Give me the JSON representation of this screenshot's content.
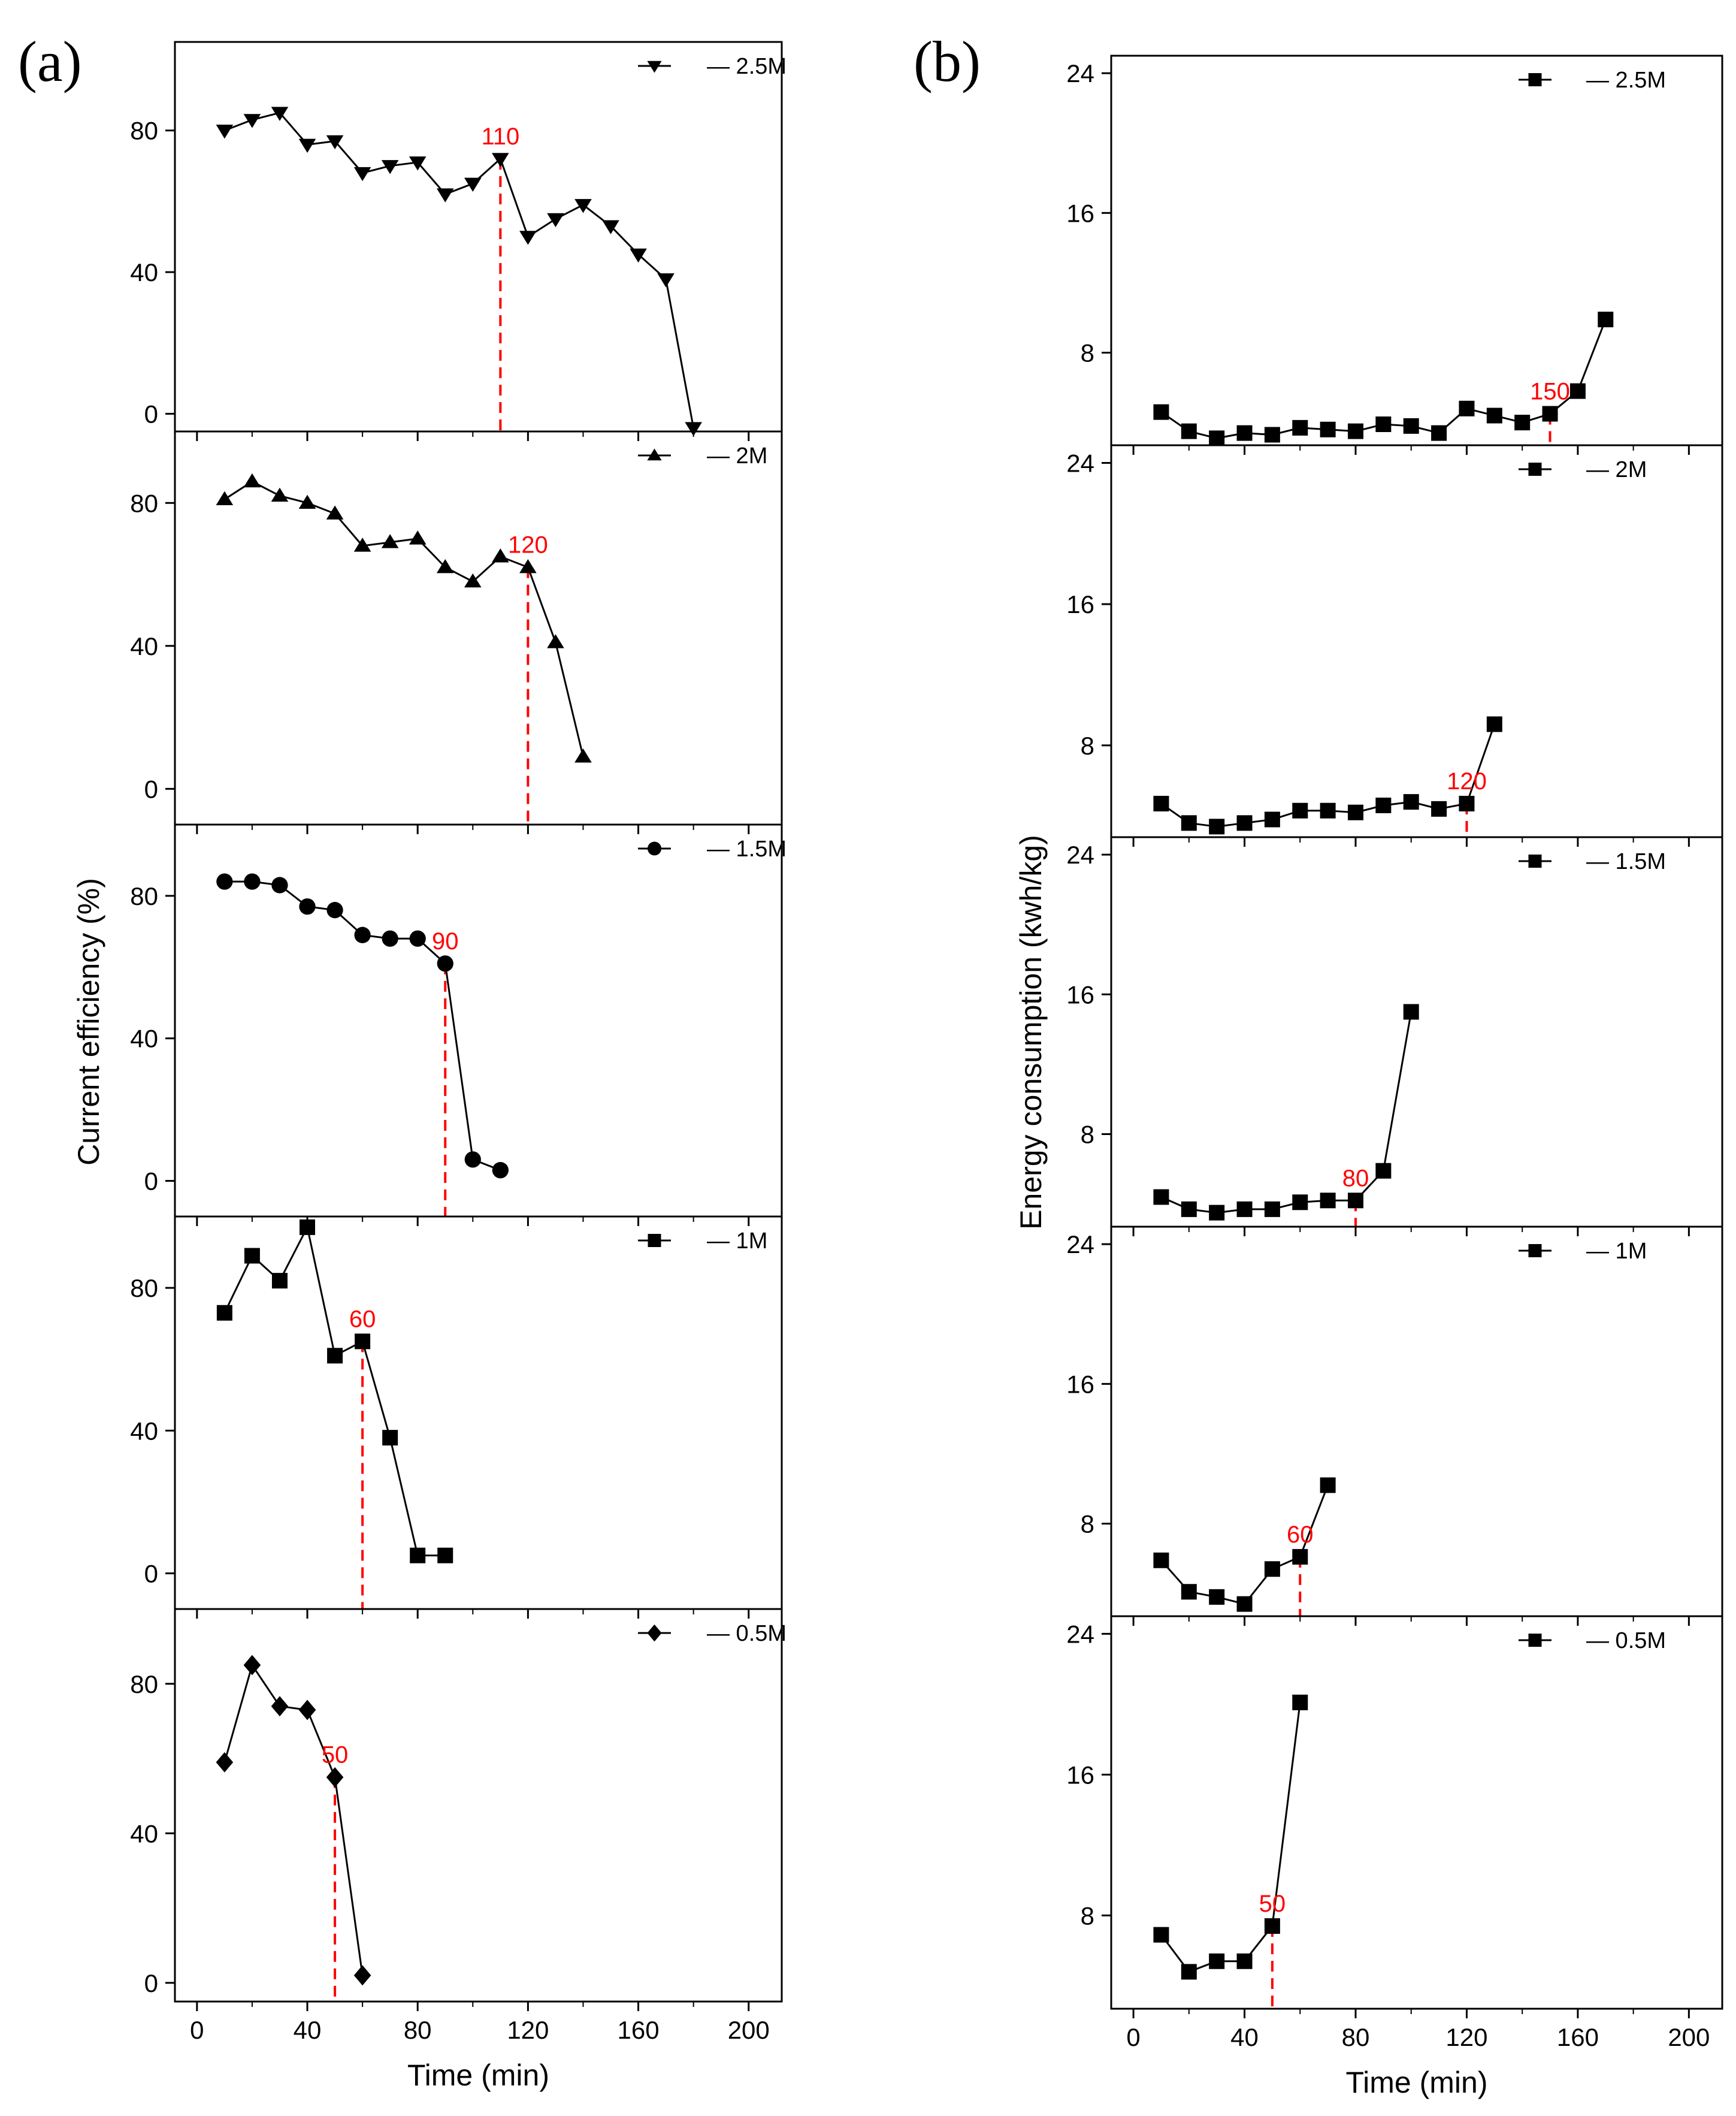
{
  "panel_labels": {
    "a": "(a)",
    "b": "(b)"
  },
  "chart_data": [
    {
      "type": "line",
      "panel": "(a)",
      "xlabel": "Time (min)",
      "ylabel": "Current efficiency (%)",
      "xlim": [
        -8,
        212
      ],
      "xticks": [
        0,
        40,
        80,
        120,
        160,
        200
      ],
      "xtick_labels": [
        "0",
        "40",
        "80",
        "120",
        "160",
        "200"
      ],
      "subplots": [
        {
          "name": "2.5M",
          "legend": "2.5M",
          "marker": "triangle-down",
          "ylim": [
            -5,
            105
          ],
          "yticks": [
            0,
            40,
            80
          ],
          "ytick_labels": [
            "0",
            "40",
            "80"
          ],
          "x": [
            10,
            20,
            30,
            40,
            50,
            60,
            70,
            80,
            90,
            100,
            110,
            120,
            130,
            140,
            150,
            160,
            170,
            180
          ],
          "y": [
            80,
            83,
            85,
            76,
            77,
            68,
            70,
            71,
            62,
            65,
            72,
            50,
            55,
            59,
            53,
            45,
            38,
            -4
          ],
          "marker_line": {
            "x": 110,
            "y": 72,
            "label": "110"
          }
        },
        {
          "name": "2M",
          "legend": "2M",
          "marker": "triangle-up",
          "ylim": [
            -10,
            100
          ],
          "yticks": [
            0,
            40,
            80
          ],
          "ytick_labels": [
            "0",
            "40",
            "80"
          ],
          "x": [
            10,
            20,
            30,
            40,
            50,
            60,
            70,
            80,
            90,
            100,
            110,
            120,
            130,
            140
          ],
          "y": [
            81,
            86,
            82,
            80,
            77,
            68,
            69,
            70,
            62,
            58,
            65,
            62,
            41,
            9
          ],
          "marker_line": {
            "x": 120,
            "y": 62,
            "label": "120"
          }
        },
        {
          "name": "1.5M",
          "legend": "1.5M",
          "marker": "circle",
          "ylim": [
            -10,
            100
          ],
          "yticks": [
            0,
            40,
            80
          ],
          "ytick_labels": [
            "0",
            "40",
            "80"
          ],
          "x": [
            10,
            20,
            30,
            40,
            50,
            60,
            70,
            80,
            90,
            100,
            110
          ],
          "y": [
            84,
            84,
            83,
            77,
            76,
            69,
            68,
            68,
            61,
            6,
            3
          ],
          "marker_line": {
            "x": 90,
            "y": 61,
            "label": "90"
          }
        },
        {
          "name": "1M",
          "legend": "1M",
          "marker": "square",
          "ylim": [
            -10,
            100
          ],
          "yticks": [
            0,
            40,
            80
          ],
          "ytick_labels": [
            "0",
            "40",
            "80"
          ],
          "x": [
            10,
            20,
            30,
            40,
            50,
            60,
            70,
            80,
            90
          ],
          "y": [
            73,
            89,
            82,
            97,
            61,
            65,
            38,
            5,
            5
          ],
          "marker_line": {
            "x": 60,
            "y": 65,
            "label": "60"
          }
        },
        {
          "name": "0.5M",
          "legend": "0.5M",
          "marker": "diamond",
          "ylim": [
            -5,
            100
          ],
          "yticks": [
            0,
            40,
            80
          ],
          "ytick_labels": [
            "0",
            "40",
            "80"
          ],
          "x": [
            10,
            20,
            30,
            40,
            50,
            60
          ],
          "y": [
            59,
            85,
            74,
            73,
            55,
            2
          ],
          "marker_line": {
            "x": 50,
            "y": 55,
            "label": "50"
          }
        }
      ]
    },
    {
      "type": "line",
      "panel": "(b)",
      "xlabel": "Time (min)",
      "ylabel": "Energy consumption (kwh/kg)",
      "xlim": [
        -8,
        212
      ],
      "xticks": [
        0,
        40,
        80,
        120,
        160,
        200
      ],
      "xtick_labels": [
        "0",
        "40",
        "80",
        "120",
        "160",
        "200"
      ],
      "subplots": [
        {
          "name": "2.5M",
          "legend": "2.5M",
          "marker": "square",
          "ylim": [
            2.7,
            25
          ],
          "yticks": [
            8,
            16,
            24
          ],
          "ytick_labels": [
            "8",
            "16",
            "24"
          ],
          "x": [
            10,
            20,
            30,
            40,
            50,
            60,
            70,
            80,
            90,
            100,
            110,
            120,
            130,
            140,
            150,
            160,
            170
          ],
          "y": [
            4.6,
            3.5,
            3.1,
            3.4,
            3.3,
            3.7,
            3.6,
            3.5,
            3.9,
            3.8,
            3.4,
            4.8,
            4.4,
            4.0,
            4.5,
            5.8,
            9.9
          ],
          "marker_line": {
            "x": 150,
            "y": 4.5,
            "label": "150"
          }
        },
        {
          "name": "2M",
          "legend": "2M",
          "marker": "square",
          "ylim": [
            2.8,
            25
          ],
          "yticks": [
            8,
            16,
            24
          ],
          "ytick_labels": [
            "8",
            "16",
            "24"
          ],
          "x": [
            10,
            20,
            30,
            40,
            50,
            60,
            70,
            80,
            90,
            100,
            110,
            120,
            130
          ],
          "y": [
            4.7,
            3.6,
            3.4,
            3.6,
            3.8,
            4.3,
            4.3,
            4.2,
            4.6,
            4.8,
            4.4,
            4.7,
            9.2
          ],
          "marker_line": {
            "x": 120,
            "y": 4.7,
            "label": "120"
          }
        },
        {
          "name": "1.5M",
          "legend": "1.5M",
          "marker": "square",
          "ylim": [
            2.7,
            25
          ],
          "yticks": [
            8,
            16,
            24
          ],
          "ytick_labels": [
            "8",
            "16",
            "24"
          ],
          "x": [
            10,
            20,
            30,
            40,
            50,
            60,
            70,
            80,
            90,
            100
          ],
          "y": [
            4.4,
            3.7,
            3.5,
            3.7,
            3.7,
            4.1,
            4.2,
            4.2,
            5.9,
            15.0
          ],
          "marker_line": {
            "x": 80,
            "y": 4.2,
            "label": "80"
          }
        },
        {
          "name": "1M",
          "legend": "1M",
          "marker": "square",
          "ylim": [
            2.7,
            25
          ],
          "yticks": [
            8,
            16,
            24
          ],
          "ytick_labels": [
            "8",
            "16",
            "24"
          ],
          "x": [
            10,
            20,
            30,
            40,
            50,
            60,
            70
          ],
          "y": [
            5.9,
            4.1,
            3.8,
            3.4,
            5.4,
            6.1,
            10.2
          ],
          "marker_line": {
            "x": 60,
            "y": 6.1,
            "label": "60"
          }
        },
        {
          "name": "0.5M",
          "legend": "0.5M",
          "marker": "square",
          "ylim": [
            2.7,
            25
          ],
          "yticks": [
            8,
            16,
            24
          ],
          "ytick_labels": [
            "8",
            "16",
            "24"
          ],
          "x": [
            10,
            20,
            30,
            40,
            50,
            60
          ],
          "y": [
            6.9,
            4.8,
            5.4,
            5.4,
            7.4,
            20.1
          ],
          "marker_line": {
            "x": 50,
            "y": 7.4,
            "label": "50"
          }
        }
      ]
    }
  ]
}
